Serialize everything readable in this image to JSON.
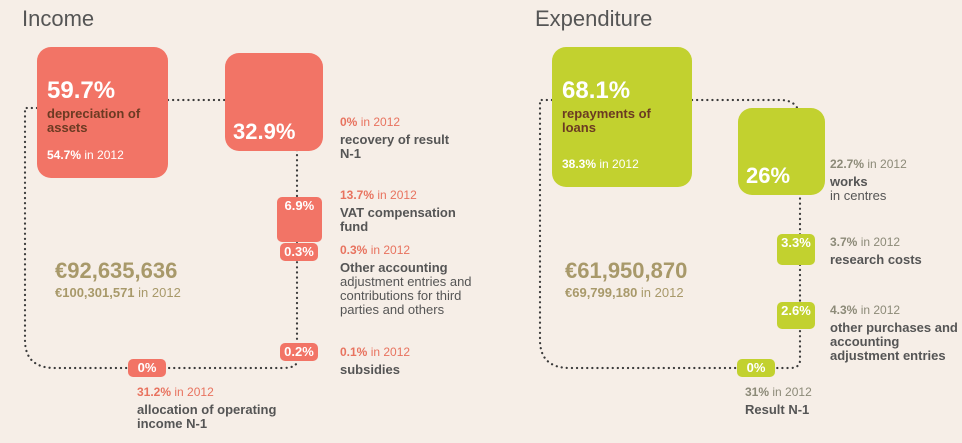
{
  "year_note": "in 2012",
  "income": {
    "title": "Income",
    "color": "#f27466",
    "text_color": "#e8735f",
    "total": "€92,635,636",
    "total_previous": "€100,301,571",
    "items": [
      {
        "value": 59.7,
        "value_label": "59.7%",
        "name": "depreciation of assets",
        "previous": "54.7%"
      },
      {
        "value": 32.9,
        "value_label": "32.9%",
        "name": "recovery of result N-1",
        "previous": "0%"
      },
      {
        "value": 6.9,
        "value_label": "6.9%",
        "name": "VAT compensation fund",
        "previous": "13.7%"
      },
      {
        "value": 0.3,
        "value_label": "0.3%",
        "name": "Other accounting",
        "description": "adjustment entries and contributions for third parties and others",
        "previous": "0.3%"
      },
      {
        "value": 0.2,
        "value_label": "0.2%",
        "name": "subsidies",
        "previous": "0.1%"
      },
      {
        "value": 0,
        "value_label": "0%",
        "name": "allocation of operating income N-1",
        "previous": "31.2%"
      }
    ]
  },
  "expenditure": {
    "title": "Expenditure",
    "color": "#c2d12f",
    "text_color": "#8c8a78",
    "total": "€61,950,870",
    "total_previous": "€69,799,180",
    "items": [
      {
        "value": 68.1,
        "value_label": "68.1%",
        "name": "repayments of loans",
        "previous": "38.3%"
      },
      {
        "value": 26,
        "value_label": "26%",
        "name": "works",
        "description": "in centres",
        "previous": "22.7%"
      },
      {
        "value": 3.3,
        "value_label": "3.3%",
        "name": "research costs",
        "previous": "3.7%"
      },
      {
        "value": 2.6,
        "value_label": "2.6%",
        "name": "other purchases and accounting adjustment entries",
        "previous": "4.3%"
      },
      {
        "value": 0,
        "value_label": "0%",
        "name": "Result N-1",
        "previous": "31%"
      }
    ]
  }
}
